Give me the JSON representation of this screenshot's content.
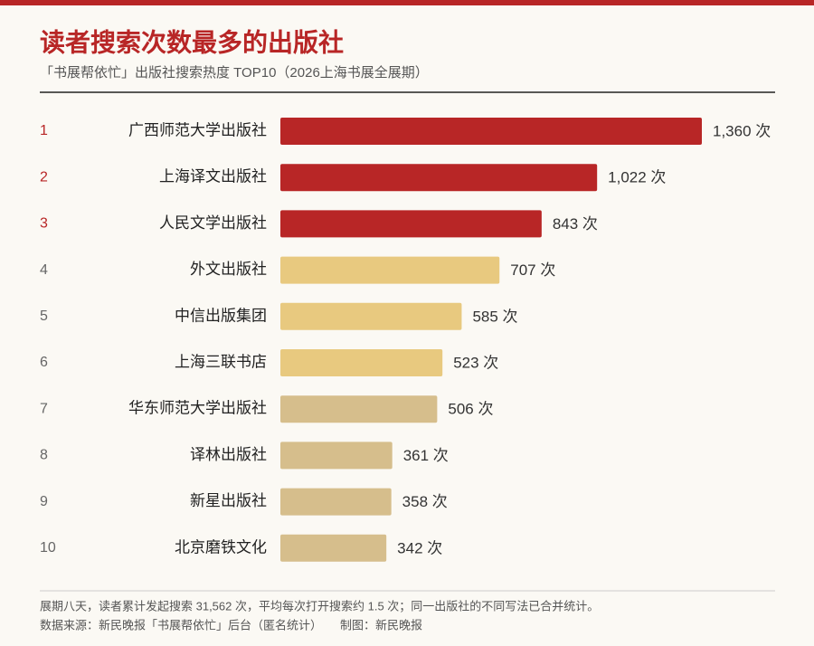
{
  "chart_data": {
    "type": "bar",
    "orientation": "horizontal",
    "title": "读者搜索次数最多的出版社",
    "subtitle": "「书展帮依忙」出版社搜索热度 TOP10（2026上海书展全展期）",
    "ranks": [
      1,
      2,
      3,
      4,
      5,
      6,
      7,
      8,
      9,
      10
    ],
    "categories": [
      "广西师范大学出版社",
      "上海译文出版社",
      "人民文学出版社",
      "外文出版社",
      "中信出版集团",
      "上海三联书店",
      "华东师范大学出版社",
      "译林出版社",
      "新星出版社",
      "北京磨铁文化"
    ],
    "values": [
      1360,
      1022,
      843,
      707,
      585,
      523,
      506,
      361,
      358,
      342
    ],
    "value_labels": [
      "1,360 次",
      "1,022 次",
      "843 次",
      "707 次",
      "585 次",
      "523 次",
      "506 次",
      "361 次",
      "358 次",
      "342 次"
    ],
    "colors": [
      "#b82626",
      "#b82626",
      "#b82626",
      "#e8c97f",
      "#e8c97f",
      "#e8c97f",
      "#d6be8c",
      "#d6be8c",
      "#d6be8c",
      "#d6be8c"
    ],
    "rank_colors": [
      "#b82626",
      "#b82626",
      "#b82626",
      "#666666",
      "#666666",
      "#666666",
      "#666666",
      "#666666",
      "#666666",
      "#666666"
    ],
    "xlim": [
      0,
      1360
    ],
    "note": "展期八天，读者累计发起搜索 31,562 次，平均每次打开搜索约 1.5 次；同一出版社的不同写法已合并统计。",
    "source": "数据来源：新民晚报「书展帮依忙」后台（匿名统计）",
    "credit": "制图：新民晚报"
  }
}
